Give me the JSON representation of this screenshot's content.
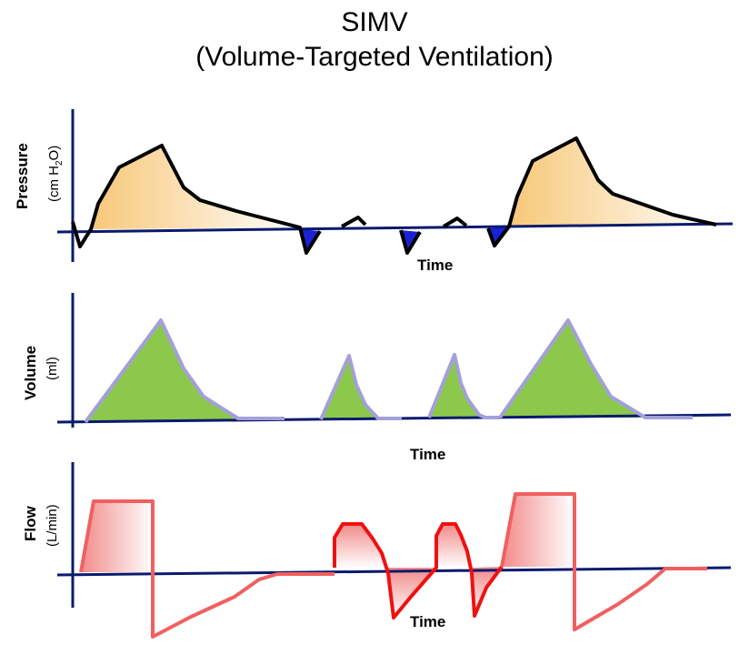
{
  "title": {
    "line1": "SIMV",
    "line2": "(Volume-Targeted Ventilation)"
  },
  "panels": {
    "pressure": {
      "label": "Pressure",
      "unit_main": "(cm H",
      "unit_sub": "2",
      "unit_end": "O)",
      "time_label": "Time"
    },
    "volume": {
      "label": "Volume",
      "unit": "(ml)",
      "time_label": "Time"
    },
    "flow": {
      "label": "Flow",
      "unit": "(L/min)",
      "time_label": "Time"
    }
  },
  "colors": {
    "axis": "#0a1a6e",
    "pressure_line": "#000000",
    "pressure_fill": "#f7c879",
    "trigger_fill": "#1a22d6",
    "volume_line": "#a3a0d8",
    "volume_fill": "#8cc84b",
    "flow_mandatory": "#f06060",
    "flow_spont": "#ee1111",
    "flow_fill": "#f28a8a"
  }
}
